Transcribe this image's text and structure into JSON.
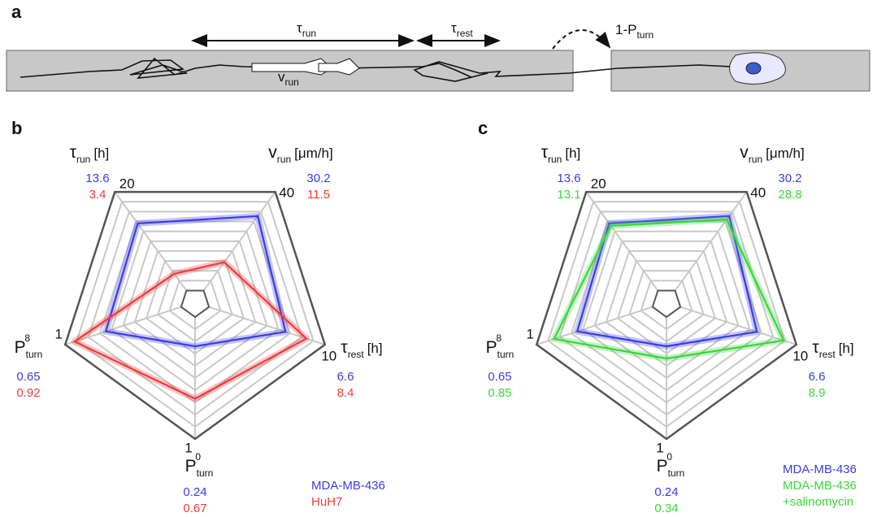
{
  "panel_labels": [
    "a",
    "b",
    "c"
  ],
  "schematic": {
    "tau_run": {
      "symbol": "τ",
      "sub": "run"
    },
    "tau_rest": {
      "symbol": "τ",
      "sub": "rest"
    },
    "v_run": {
      "symbol": "v",
      "sub": "run"
    },
    "turn": {
      "symbol": "1-P",
      "sub": "turn"
    }
  },
  "chart_data": [
    {
      "type": "radar",
      "axes": [
        {
          "label": {
            "symbol": "τ",
            "sub": "run",
            "unit": "[h]"
          },
          "max": 20
        },
        {
          "label": {
            "symbol": "v",
            "sub": "run",
            "unit": "[μm/h]"
          },
          "max": 40
        },
        {
          "label": {
            "symbol": "τ",
            "sub": "rest",
            "unit": "[h]"
          },
          "max": 10
        },
        {
          "label": {
            "symbol": "P",
            "sub": "turn",
            "sup": "0"
          },
          "max": 1
        },
        {
          "label": {
            "symbol": "P",
            "sub": "turn",
            "sup": "8"
          },
          "max": 1
        }
      ],
      "grid_rings": 10,
      "series": [
        {
          "name": "MDA-MB-436",
          "color": "#3b3be8",
          "values": [
            13.6,
            30.2,
            6.6,
            0.24,
            0.65
          ]
        },
        {
          "name": "HuH7",
          "color": "#f03a3a",
          "values": [
            3.4,
            11.5,
            8.4,
            0.67,
            0.92
          ]
        }
      ]
    },
    {
      "type": "radar",
      "axes": [
        {
          "label": {
            "symbol": "τ",
            "sub": "run",
            "unit": "[h]"
          },
          "max": 20
        },
        {
          "label": {
            "symbol": "v",
            "sub": "run",
            "unit": "[μm/h]"
          },
          "max": 40
        },
        {
          "label": {
            "symbol": "τ",
            "sub": "rest",
            "unit": "[h]"
          },
          "max": 10
        },
        {
          "label": {
            "symbol": "P",
            "sub": "turn",
            "sup": "0"
          },
          "max": 1
        },
        {
          "label": {
            "symbol": "P",
            "sub": "turn",
            "sup": "8"
          },
          "max": 1
        }
      ],
      "grid_rings": 10,
      "series": [
        {
          "name": "MDA-MB-436",
          "color": "#3b3be8",
          "values": [
            13.6,
            30.2,
            6.6,
            0.24,
            0.65
          ]
        },
        {
          "name": "MDA-MB-436 +salinomycin",
          "color": "#3ad63a",
          "values": [
            13.1,
            28.8,
            8.9,
            0.34,
            0.85
          ]
        }
      ]
    }
  ]
}
